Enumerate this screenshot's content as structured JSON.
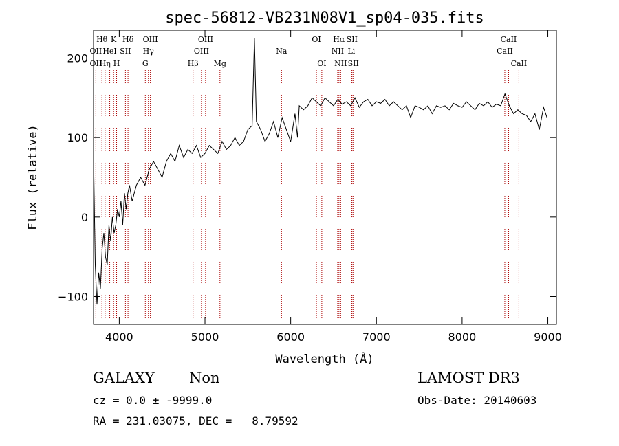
{
  "chart_data": {
    "type": "line",
    "title": "spec-56812-VB231N08V1_sp04-035.fits",
    "xlabel": "Wavelength (Å)",
    "ylabel": "Flux (relative)",
    "xlim": [
      3700,
      9100
    ],
    "ylim": [
      -135,
      235
    ],
    "x_ticks": [
      4000,
      5000,
      6000,
      7000,
      8000,
      9000
    ],
    "y_ticks": [
      -100,
      0,
      100,
      200
    ],
    "grid": false,
    "legend": "none",
    "line_color": "#000000",
    "marker_color": "#aa0000",
    "series": [
      {
        "x": [
          3700,
          3720,
          3740,
          3760,
          3780,
          3800,
          3820,
          3840,
          3860,
          3880,
          3900,
          3920,
          3940,
          3960,
          3980,
          4000,
          4020,
          4040,
          4060,
          4080,
          4100,
          4120,
          4150,
          4200,
          4250,
          4300,
          4350,
          4400,
          4450,
          4500,
          4550,
          4600,
          4650,
          4700,
          4750,
          4800,
          4850,
          4900,
          4950,
          5000,
          5050,
          5100,
          5150,
          5200,
          5250,
          5300,
          5350,
          5400,
          5450,
          5500,
          5550,
          5577,
          5600,
          5650,
          5700,
          5750,
          5800,
          5850,
          5900,
          5950,
          6000,
          6050,
          6080,
          6100,
          6150,
          6200,
          6250,
          6300,
          6350,
          6400,
          6450,
          6500,
          6550,
          6600,
          6650,
          6700,
          6750,
          6800,
          6850,
          6900,
          6950,
          7000,
          7050,
          7100,
          7150,
          7200,
          7250,
          7300,
          7350,
          7400,
          7450,
          7500,
          7550,
          7600,
          7650,
          7700,
          7750,
          7800,
          7850,
          7900,
          7950,
          8000,
          8050,
          8100,
          8150,
          8200,
          8250,
          8300,
          8350,
          8400,
          8450,
          8500,
          8550,
          8600,
          8650,
          8700,
          8750,
          8800,
          8850,
          8900,
          8950,
          8990
        ],
        "y": [
          80,
          -60,
          -110,
          -70,
          -90,
          -40,
          -20,
          -50,
          -60,
          -10,
          -30,
          0,
          -20,
          -10,
          10,
          0,
          20,
          -10,
          30,
          10,
          30,
          40,
          20,
          40,
          50,
          40,
          60,
          70,
          60,
          50,
          70,
          80,
          70,
          90,
          75,
          85,
          80,
          90,
          75,
          80,
          90,
          85,
          80,
          95,
          85,
          90,
          100,
          90,
          95,
          110,
          115,
          225,
          120,
          110,
          95,
          105,
          120,
          100,
          125,
          110,
          95,
          130,
          100,
          140,
          135,
          140,
          150,
          145,
          140,
          150,
          145,
          140,
          148,
          142,
          145,
          140,
          150,
          138,
          145,
          148,
          140,
          145,
          143,
          148,
          140,
          145,
          140,
          135,
          140,
          125,
          140,
          138,
          135,
          140,
          130,
          140,
          138,
          140,
          135,
          143,
          140,
          138,
          145,
          140,
          135,
          143,
          140,
          145,
          138,
          142,
          140,
          155,
          140,
          130,
          135,
          130,
          128,
          120,
          130,
          110,
          138,
          125
        ]
      }
    ],
    "spectral_lines": [
      {
        "name": "OII",
        "x": 3727,
        "row": 2
      },
      {
        "name": "OII",
        "x": 3727,
        "row": 1
      },
      {
        "name": "Hθ",
        "x": 3798,
        "row": 0
      },
      {
        "name": "Hη",
        "x": 3835,
        "row": 2
      },
      {
        "name": "HeI",
        "x": 3889,
        "row": 1
      },
      {
        "name": "K",
        "x": 3934,
        "row": 0
      },
      {
        "name": "H",
        "x": 3969,
        "row": 2
      },
      {
        "name": "Hδ",
        "x": 4102,
        "row": 0
      },
      {
        "name": "SII",
        "x": 4072,
        "row": 1
      },
      {
        "name": "OIII",
        "x": 4363,
        "row": 0
      },
      {
        "name": "Hγ",
        "x": 4340,
        "row": 1
      },
      {
        "name": "G",
        "x": 4304,
        "row": 2
      },
      {
        "name": "OIII",
        "x": 5007,
        "row": 0
      },
      {
        "name": "OIII",
        "x": 4959,
        "row": 1
      },
      {
        "name": "Hβ",
        "x": 4861,
        "row": 2
      },
      {
        "name": "Mg",
        "x": 5175,
        "row": 2
      },
      {
        "name": "Na",
        "x": 5893,
        "row": 1
      },
      {
        "name": "OI",
        "x": 6300,
        "row": 0
      },
      {
        "name": "OI",
        "x": 6363,
        "row": 2
      },
      {
        "name": "Hα",
        "x": 6563,
        "row": 0
      },
      {
        "name": "NII",
        "x": 6548,
        "row": 1
      },
      {
        "name": "NII",
        "x": 6583,
        "row": 2
      },
      {
        "name": "SII",
        "x": 6716,
        "row": 0
      },
      {
        "name": "Li",
        "x": 6708,
        "row": 1
      },
      {
        "name": "SII",
        "x": 6731,
        "row": 2
      },
      {
        "name": "CaII",
        "x": 8542,
        "row": 0
      },
      {
        "name": "CaII",
        "x": 8498,
        "row": 1
      },
      {
        "name": "CaII",
        "x": 8662,
        "row": 2
      }
    ]
  },
  "info": {
    "class": "GALAXY",
    "subclass": "Non",
    "survey": "LAMOST DR3",
    "cz": "cz = 0.0 ± -9999.0",
    "obs_date": "Obs-Date: 20140603",
    "radec": "RA = 231.03075, DEC =   8.79592"
  }
}
